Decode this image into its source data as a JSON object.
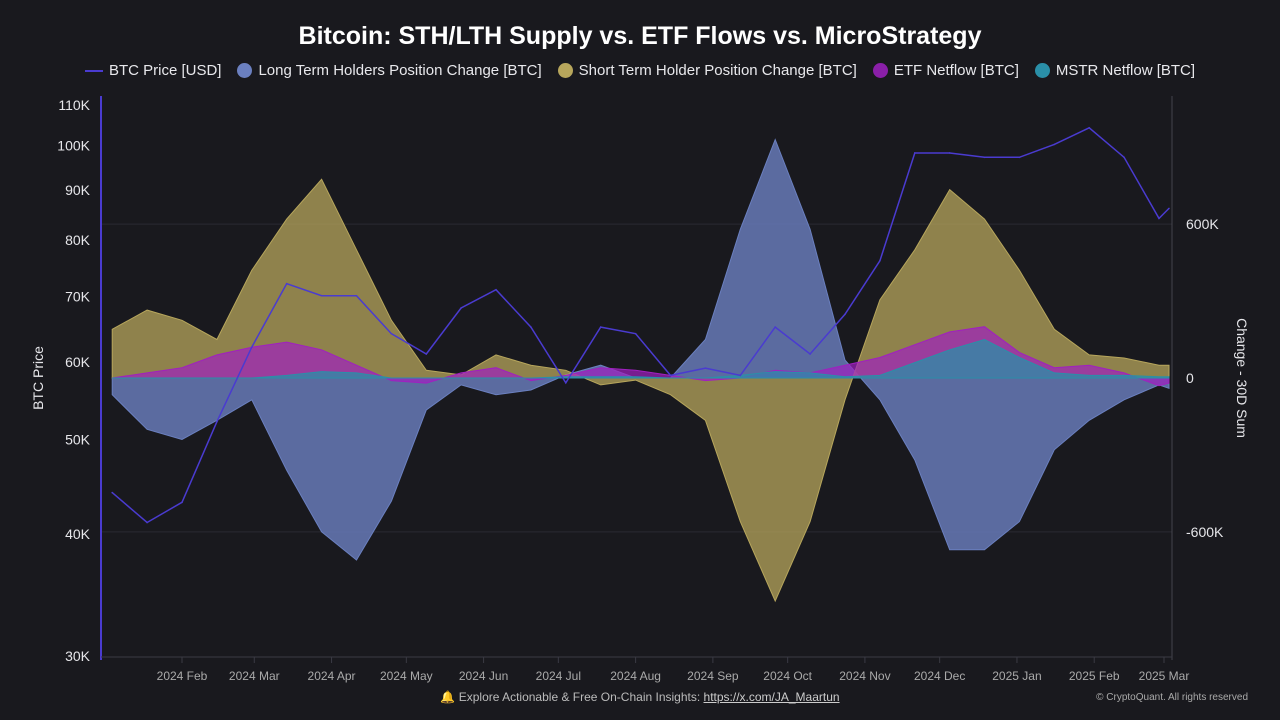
{
  "chart_data": {
    "type": "area",
    "title": "Bitcoin: STH/LTH Supply vs. ETF Flows vs. MicroStrategy",
    "ylabel_left": "BTC Price",
    "ylabel_right": "Change - 30D Sum",
    "left_axis": {
      "scale": "log",
      "range": [
        30000,
        110000
      ],
      "ticks": [
        30000,
        40000,
        50000,
        60000,
        70000,
        80000,
        90000,
        100000,
        110000
      ],
      "tick_labels": [
        "30K",
        "40K",
        "50K",
        "60K",
        "70K",
        "80K",
        "90K",
        "100K",
        "110K"
      ]
    },
    "right_axis": {
      "scale": "linear",
      "range": [
        -1100000,
        1100000
      ],
      "ticks": [
        -600000,
        0,
        600000
      ],
      "tick_labels": [
        "-600K",
        "0",
        "600K"
      ]
    },
    "x_tick_labels": [
      "2024 Feb",
      "2024 Mar",
      "2024 Apr",
      "2024 May",
      "2024 Jun",
      "2024 Jul",
      "2024 Aug",
      "2024 Sep",
      "2024 Oct",
      "2024 Nov",
      "2024 Dec",
      "2025 Jan",
      "2025 Feb",
      "2025 Mar"
    ],
    "x_tick_dates": [
      "2024-02-01",
      "2024-03-01",
      "2024-04-01",
      "2024-05-01",
      "2024-06-01",
      "2024-07-01",
      "2024-08-01",
      "2024-09-01",
      "2024-10-01",
      "2024-11-01",
      "2024-12-01",
      "2025-01-01",
      "2025-02-01",
      "2025-03-01"
    ],
    "x": [
      "2024-01-04",
      "2024-01-18",
      "2024-02-01",
      "2024-02-15",
      "2024-02-29",
      "2024-03-14",
      "2024-03-28",
      "2024-04-11",
      "2024-04-25",
      "2024-05-09",
      "2024-05-23",
      "2024-06-06",
      "2024-06-20",
      "2024-07-04",
      "2024-07-18",
      "2024-08-01",
      "2024-08-15",
      "2024-08-29",
      "2024-09-12",
      "2024-09-26",
      "2024-10-10",
      "2024-10-24",
      "2024-11-07",
      "2024-11-21",
      "2024-12-05",
      "2024-12-19",
      "2025-01-02",
      "2025-01-16",
      "2025-01-30",
      "2025-02-13",
      "2025-02-27",
      "2025-03-03"
    ],
    "grid": true,
    "legend_position": "top",
    "series": [
      {
        "name": "Long Term Holders Position Change [BTC]",
        "axis": "right",
        "color": "#6b80c0",
        "values": [
          -65000,
          -200000,
          -240000,
          -165000,
          -85000,
          -360000,
          -600000,
          -710000,
          -480000,
          -125000,
          -27000,
          -65000,
          -47000,
          12000,
          50000,
          0,
          0,
          150000,
          580000,
          930000,
          580000,
          70000,
          -85000,
          -320000,
          -670000,
          -670000,
          -560000,
          -280000,
          -165000,
          -85000,
          -27000,
          -40000
        ]
      },
      {
        "name": "Short Term Holder Position Change [BTC]",
        "axis": "right",
        "color": "#b7a65c",
        "values": [
          190000,
          265000,
          225000,
          150000,
          420000,
          620000,
          775000,
          500000,
          225000,
          30000,
          12000,
          90000,
          50000,
          30000,
          -27000,
          -8000,
          -65000,
          -165000,
          -560000,
          -870000,
          -560000,
          -85000,
          305000,
          500000,
          735000,
          620000,
          420000,
          190000,
          90000,
          78000,
          50000,
          50000
        ]
      },
      {
        "name": "ETF Netflow [BTC]",
        "axis": "right",
        "color": "#a020c0",
        "values": [
          0,
          20000,
          40000,
          90000,
          120000,
          140000,
          110000,
          50000,
          -10000,
          -20000,
          20000,
          40000,
          -10000,
          10000,
          40000,
          30000,
          10000,
          -10000,
          0,
          30000,
          20000,
          50000,
          80000,
          130000,
          180000,
          200000,
          100000,
          40000,
          50000,
          20000,
          -30000,
          -20000
        ]
      },
      {
        "name": "MSTR Netflow [BTC]",
        "axis": "right",
        "color": "#2a8fa8",
        "values": [
          0,
          0,
          0,
          0,
          0,
          10000,
          25000,
          20000,
          0,
          0,
          0,
          0,
          0,
          5000,
          5000,
          5000,
          0,
          0,
          10000,
          25000,
          20000,
          5000,
          10000,
          60000,
          110000,
          150000,
          80000,
          20000,
          10000,
          10000,
          5000,
          5000
        ]
      },
      {
        "name": "BTC Price [USD]",
        "axis": "left",
        "type": "line",
        "color": "#4a3bd0",
        "values": [
          44000,
          41000,
          43000,
          52000,
          62000,
          72000,
          70000,
          70000,
          64000,
          61000,
          68000,
          71000,
          65000,
          57000,
          65000,
          64000,
          58000,
          59000,
          58000,
          65000,
          61000,
          67000,
          76000,
          98000,
          98000,
          97000,
          97000,
          100000,
          104000,
          97000,
          84000,
          86000
        ]
      }
    ]
  },
  "legend": [
    {
      "label": "BTC Price [USD]",
      "color": "#4a3bd0",
      "kind": "line"
    },
    {
      "label": "Long Term Holders Position Change [BTC]",
      "color": "#6b80c0",
      "kind": "dot"
    },
    {
      "label": "Short Term Holder Position Change [BTC]",
      "color": "#b7a65c",
      "kind": "dot"
    },
    {
      "label": "ETF Netflow [BTC]",
      "color": "#8a1fa8",
      "kind": "dot"
    },
    {
      "label": "MSTR Netflow [BTC]",
      "color": "#2a8fa8",
      "kind": "dot"
    }
  ],
  "footer": {
    "text": "Explore Actionable & Free On-Chain Insights: ",
    "link": "https://x.com/JA_Maartun",
    "icon": "bell-icon",
    "copyright": "© CryptoQuant. All rights reserved"
  }
}
